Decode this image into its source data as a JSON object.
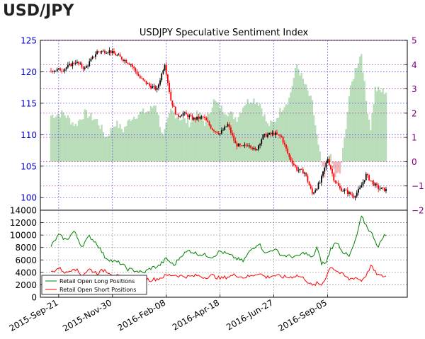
{
  "header": {
    "title": "USD/JPY"
  },
  "chart_data": [
    {
      "type": "candlestick",
      "title": "USDJPY Speculative Sentiment Index",
      "left_axis": {
        "ylim": [
          98,
          125
        ],
        "ticks": [
          100,
          105,
          110,
          115,
          120,
          125
        ],
        "color": "#0000cc"
      },
      "right_axis": {
        "ylim": [
          -2,
          5
        ],
        "ticks": [
          -2,
          -1,
          0,
          1,
          2,
          3,
          4,
          5
        ],
        "color": "#800080"
      },
      "x_dates": [
        "2015-Sep-21",
        "2015-Nov-30",
        "2016-Feb-08",
        "2016-Apr-18",
        "2016-Jun-27",
        "2016-Sep-05"
      ],
      "price_keypoints": [
        [
          0,
          120.2
        ],
        [
          8,
          120.4
        ],
        [
          16,
          121.6
        ],
        [
          22,
          120.5
        ],
        [
          30,
          123.2
        ],
        [
          38,
          123.3
        ],
        [
          45,
          122.3
        ],
        [
          52,
          121.2
        ],
        [
          58,
          119.0
        ],
        [
          64,
          117.8
        ],
        [
          69,
          117.2
        ],
        [
          74,
          121.3
        ],
        [
          78,
          115.5
        ],
        [
          82,
          112.9
        ],
        [
          86,
          113.4
        ],
        [
          93,
          112.5
        ],
        [
          99,
          112.8
        ],
        [
          105,
          110.9
        ],
        [
          110,
          110.2
        ],
        [
          115,
          111.6
        ],
        [
          120,
          108.5
        ],
        [
          124,
          108.0
        ],
        [
          129,
          108.5
        ],
        [
          133,
          107.4
        ],
        [
          138,
          109.8
        ],
        [
          145,
          110.2
        ],
        [
          150,
          109.6
        ],
        [
          155,
          106.4
        ],
        [
          160,
          104.5
        ],
        [
          165,
          104.0
        ],
        [
          170,
          100.6
        ],
        [
          175,
          102.4
        ],
        [
          180,
          106.2
        ],
        [
          184,
          103.0
        ],
        [
          188,
          101.4
        ],
        [
          192,
          101.0
        ],
        [
          197,
          100.2
        ],
        [
          201,
          101.4
        ],
        [
          205,
          103.6
        ],
        [
          209,
          102.4
        ],
        [
          213,
          101.5
        ],
        [
          218,
          101.2
        ]
      ],
      "ssi_keypoints": [
        [
          0,
          1.9
        ],
        [
          8,
          2.0
        ],
        [
          16,
          1.5
        ],
        [
          22,
          2.0
        ],
        [
          30,
          1.7
        ],
        [
          36,
          1.0
        ],
        [
          42,
          1.6
        ],
        [
          47,
          1.3
        ],
        [
          52,
          1.8
        ],
        [
          58,
          2.0
        ],
        [
          64,
          2.1
        ],
        [
          68,
          2.4
        ],
        [
          73,
          1.0
        ],
        [
          78,
          2.1
        ],
        [
          84,
          1.8
        ],
        [
          90,
          1.6
        ],
        [
          96,
          2.0
        ],
        [
          100,
          1.6
        ],
        [
          106,
          2.5
        ],
        [
          111,
          2.2
        ],
        [
          116,
          2.0
        ],
        [
          121,
          1.8
        ],
        [
          126,
          2.4
        ],
        [
          131,
          2.6
        ],
        [
          136,
          2.4
        ],
        [
          141,
          1.5
        ],
        [
          145,
          1.6
        ],
        [
          150,
          2.2
        ],
        [
          155,
          2.6
        ],
        [
          160,
          4.0
        ],
        [
          165,
          3.2
        ],
        [
          170,
          2.4
        ],
        [
          174,
          0.6
        ],
        [
          178,
          -0.7
        ],
        [
          181,
          0.4
        ],
        [
          185,
          -0.6
        ],
        [
          188,
          -0.5
        ],
        [
          191,
          0.9
        ],
        [
          194,
          2.7
        ],
        [
          198,
          3.8
        ],
        [
          202,
          4.5
        ],
        [
          205,
          2.5
        ],
        [
          208,
          1.4
        ],
        [
          211,
          3.0
        ],
        [
          215,
          2.9
        ],
        [
          218,
          2.9
        ]
      ]
    },
    {
      "type": "line",
      "ylim": [
        0,
        14000
      ],
      "yticks": [
        0,
        2000,
        4000,
        6000,
        8000,
        10000,
        12000,
        14000
      ],
      "series": [
        {
          "name": "Retail Open Long Positions",
          "color": "#008000",
          "keypoints": [
            [
              0,
              8200
            ],
            [
              5,
              10000
            ],
            [
              10,
              9200
            ],
            [
              15,
              10600
            ],
            [
              20,
              8200
            ],
            [
              25,
              9800
            ],
            [
              30,
              8600
            ],
            [
              35,
              6500
            ],
            [
              40,
              5800
            ],
            [
              45,
              5500
            ],
            [
              50,
              4500
            ],
            [
              55,
              4300
            ],
            [
              60,
              3900
            ],
            [
              65,
              4700
            ],
            [
              70,
              5000
            ],
            [
              75,
              6200
            ],
            [
              80,
              5100
            ],
            [
              85,
              6800
            ],
            [
              90,
              7500
            ],
            [
              95,
              7000
            ],
            [
              100,
              6800
            ],
            [
              105,
              6500
            ],
            [
              110,
              7400
            ],
            [
              115,
              6900
            ],
            [
              120,
              6300
            ],
            [
              125,
              5800
            ],
            [
              130,
              7600
            ],
            [
              135,
              8700
            ],
            [
              140,
              7000
            ],
            [
              145,
              7800
            ],
            [
              150,
              6800
            ],
            [
              155,
              6600
            ],
            [
              160,
              6500
            ],
            [
              165,
              7200
            ],
            [
              170,
              6300
            ],
            [
              173,
              8000
            ],
            [
              176,
              5500
            ],
            [
              179,
              5500
            ],
            [
              182,
              7800
            ],
            [
              186,
              8900
            ],
            [
              190,
              7300
            ],
            [
              194,
              6500
            ],
            [
              198,
              9000
            ],
            [
              202,
              12900
            ],
            [
              206,
              11200
            ],
            [
              210,
              9700
            ],
            [
              213,
              8000
            ],
            [
              216,
              9800
            ],
            [
              218,
              10000
            ]
          ]
        },
        {
          "name": "Retail Open Short Positions",
          "color": "#ff0000",
          "keypoints": [
            [
              0,
              4000
            ],
            [
              5,
              4700
            ],
            [
              10,
              3900
            ],
            [
              15,
              4800
            ],
            [
              20,
              3500
            ],
            [
              25,
              4500
            ],
            [
              30,
              3900
            ],
            [
              35,
              4400
            ],
            [
              40,
              3700
            ],
            [
              45,
              3200
            ],
            [
              50,
              3000
            ],
            [
              55,
              2900
            ],
            [
              60,
              3000
            ],
            [
              65,
              2800
            ],
            [
              70,
              3000
            ],
            [
              75,
              3500
            ],
            [
              80,
              3600
            ],
            [
              85,
              3400
            ],
            [
              90,
              3300
            ],
            [
              95,
              3500
            ],
            [
              100,
              3200
            ],
            [
              105,
              3500
            ],
            [
              110,
              3000
            ],
            [
              115,
              3300
            ],
            [
              120,
              3600
            ],
            [
              125,
              3200
            ],
            [
              130,
              3400
            ],
            [
              135,
              3900
            ],
            [
              140,
              3200
            ],
            [
              145,
              3500
            ],
            [
              150,
              3300
            ],
            [
              155,
              3200
            ],
            [
              160,
              3500
            ],
            [
              165,
              3000
            ],
            [
              170,
              1800
            ],
            [
              173,
              2200
            ],
            [
              176,
              2000
            ],
            [
              179,
              3300
            ],
            [
              182,
              5000
            ],
            [
              186,
              4200
            ],
            [
              190,
              3600
            ],
            [
              194,
              2900
            ],
            [
              198,
              3200
            ],
            [
              202,
              2700
            ],
            [
              206,
              3900
            ],
            [
              208,
              5100
            ],
            [
              211,
              4000
            ],
            [
              214,
              3400
            ],
            [
              218,
              3400
            ]
          ]
        }
      ],
      "legend_placement": "bottom-left"
    }
  ]
}
